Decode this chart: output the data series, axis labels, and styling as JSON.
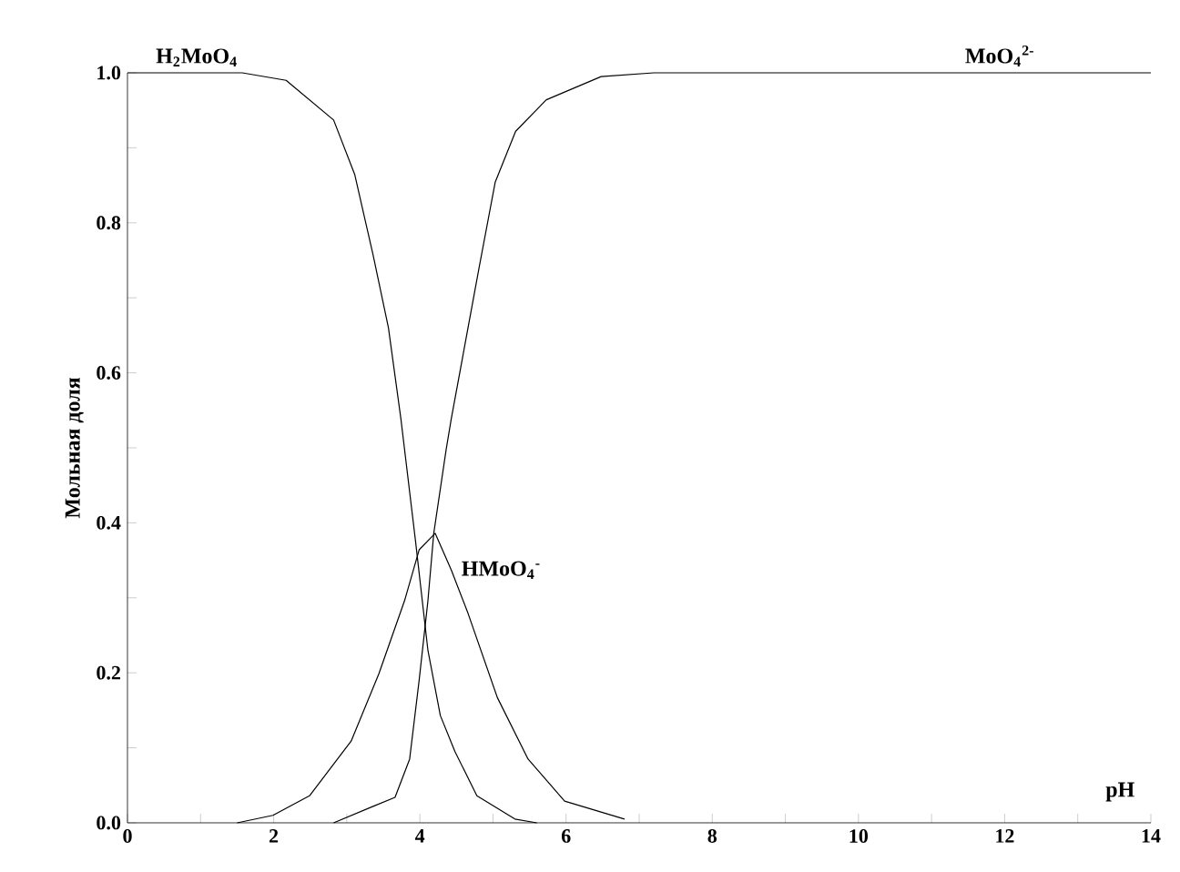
{
  "chart_data": {
    "type": "line",
    "xlabel": "pH",
    "ylabel": "Мольная доля",
    "xlim": [
      0,
      14
    ],
    "ylim": [
      0,
      1
    ],
    "xticks": [
      0,
      {
        "value": 1,
        "label": null
      },
      2,
      {
        "value": 3,
        "label": null
      },
      4,
      {
        "value": 5,
        "label": null
      },
      6,
      {
        "value": 7,
        "label": null
      },
      8,
      {
        "value": 9,
        "label": null
      },
      10,
      {
        "value": 11,
        "label": null
      },
      12,
      {
        "value": 13,
        "label": null
      },
      14
    ],
    "yticks": [
      {
        "value": 0,
        "label": "0.0"
      },
      {
        "value": 0.1,
        "label": null
      },
      {
        "value": 0.2,
        "label": "0.2"
      },
      {
        "value": 0.3,
        "label": null
      },
      {
        "value": 0.4,
        "label": "0.4"
      },
      {
        "value": 0.5,
        "label": null
      },
      {
        "value": 0.6,
        "label": "0.6"
      },
      {
        "value": 0.7,
        "label": null
      },
      {
        "value": 0.8,
        "label": "0.8"
      },
      {
        "value": 0.9,
        "label": null
      },
      {
        "value": 1,
        "label": "1.0"
      }
    ],
    "grid": false,
    "marker": "none",
    "line_style": "solid",
    "series": [
      {
        "name": "H$_{2}$MoO$_{4}$",
        "color": "#000000",
        "x": [
          0,
          1.57,
          2.17,
          2.82,
          3.11,
          3.36,
          3.57,
          3.74,
          3.94,
          4.11,
          4.28,
          4.48,
          4.78,
          5.3,
          5.6
        ],
        "values": [
          1,
          1,
          0.99,
          0.937,
          0.864,
          0.757,
          0.66,
          0.539,
          0.376,
          0.23,
          0.143,
          0.095,
          0.036,
          0.005,
          0
        ]
      },
      {
        "name": "HMoO$_{4}$$^{-}$",
        "color": "#000000",
        "x": [
          1.5,
          1.99,
          2.49,
          3.06,
          3.44,
          3.79,
          3.99,
          4.21,
          4.43,
          4.66,
          5.06,
          5.48,
          5.98,
          6.8
        ],
        "values": [
          0,
          0.01,
          0.036,
          0.109,
          0.199,
          0.296,
          0.364,
          0.386,
          0.337,
          0.279,
          0.167,
          0.085,
          0.029,
          0.005
        ]
      },
      {
        "name": "MoO$_{4}$$^{2-}$",
        "color": "#000000",
        "x": [
          2.82,
          3.36,
          3.66,
          3.86,
          3.99,
          4.11,
          4.19,
          4.36,
          4.43,
          4.81,
          5.03,
          5.31,
          5.73,
          6.48,
          7.2,
          14
        ],
        "values": [
          0,
          0.022,
          0.034,
          0.085,
          0.19,
          0.296,
          0.386,
          0.498,
          0.539,
          0.74,
          0.854,
          0.922,
          0.964,
          0.995,
          1,
          1
        ]
      }
    ]
  }
}
